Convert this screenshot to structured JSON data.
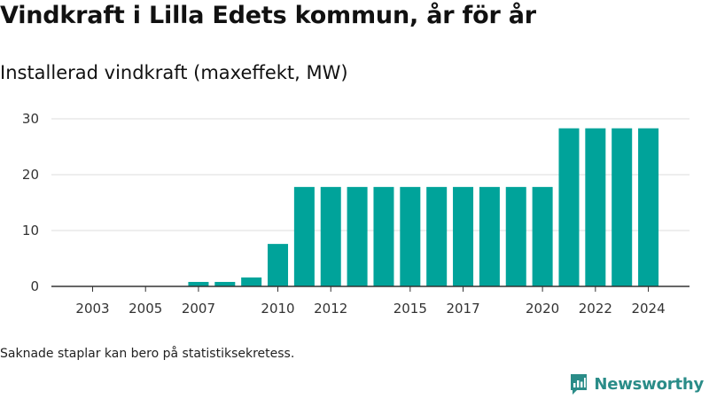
{
  "header": {
    "title": "Vindkraft i Lilla Edets kommun, år för år",
    "subtitle": "Installerad vindkraft (maxeffekt, MW)"
  },
  "footer": {
    "note": "Saknade staplar kan bero på statistiksekretess.",
    "brand": "Newsworthy"
  },
  "colors": {
    "bar": "#00a39a",
    "grid": "#dddddd",
    "axis": "#333333",
    "brand": "#2a8c88"
  },
  "chart_data": {
    "type": "bar",
    "title": "Vindkraft i Lilla Edets kommun, år för år",
    "subtitle": "Installerad vindkraft (maxeffekt, MW)",
    "xlabel": "",
    "ylabel": "",
    "x": [
      2003,
      2004,
      2005,
      2006,
      2007,
      2008,
      2009,
      2010,
      2011,
      2012,
      2013,
      2014,
      2015,
      2016,
      2017,
      2018,
      2019,
      2020,
      2021,
      2022,
      2023,
      2024
    ],
    "values": [
      0,
      0,
      0,
      0,
      0.8,
      0.8,
      1.6,
      7.6,
      17.8,
      17.8,
      17.8,
      17.8,
      17.8,
      17.8,
      17.8,
      17.8,
      17.8,
      17.8,
      28.3,
      28.3,
      28.3,
      28.3
    ],
    "xticks": [
      2003,
      2005,
      2007,
      2010,
      2012,
      2015,
      2017,
      2020,
      2022,
      2024
    ],
    "yticks": [
      0,
      10,
      20,
      30
    ],
    "ylim": [
      0,
      30
    ],
    "grid": true,
    "legend": false
  }
}
